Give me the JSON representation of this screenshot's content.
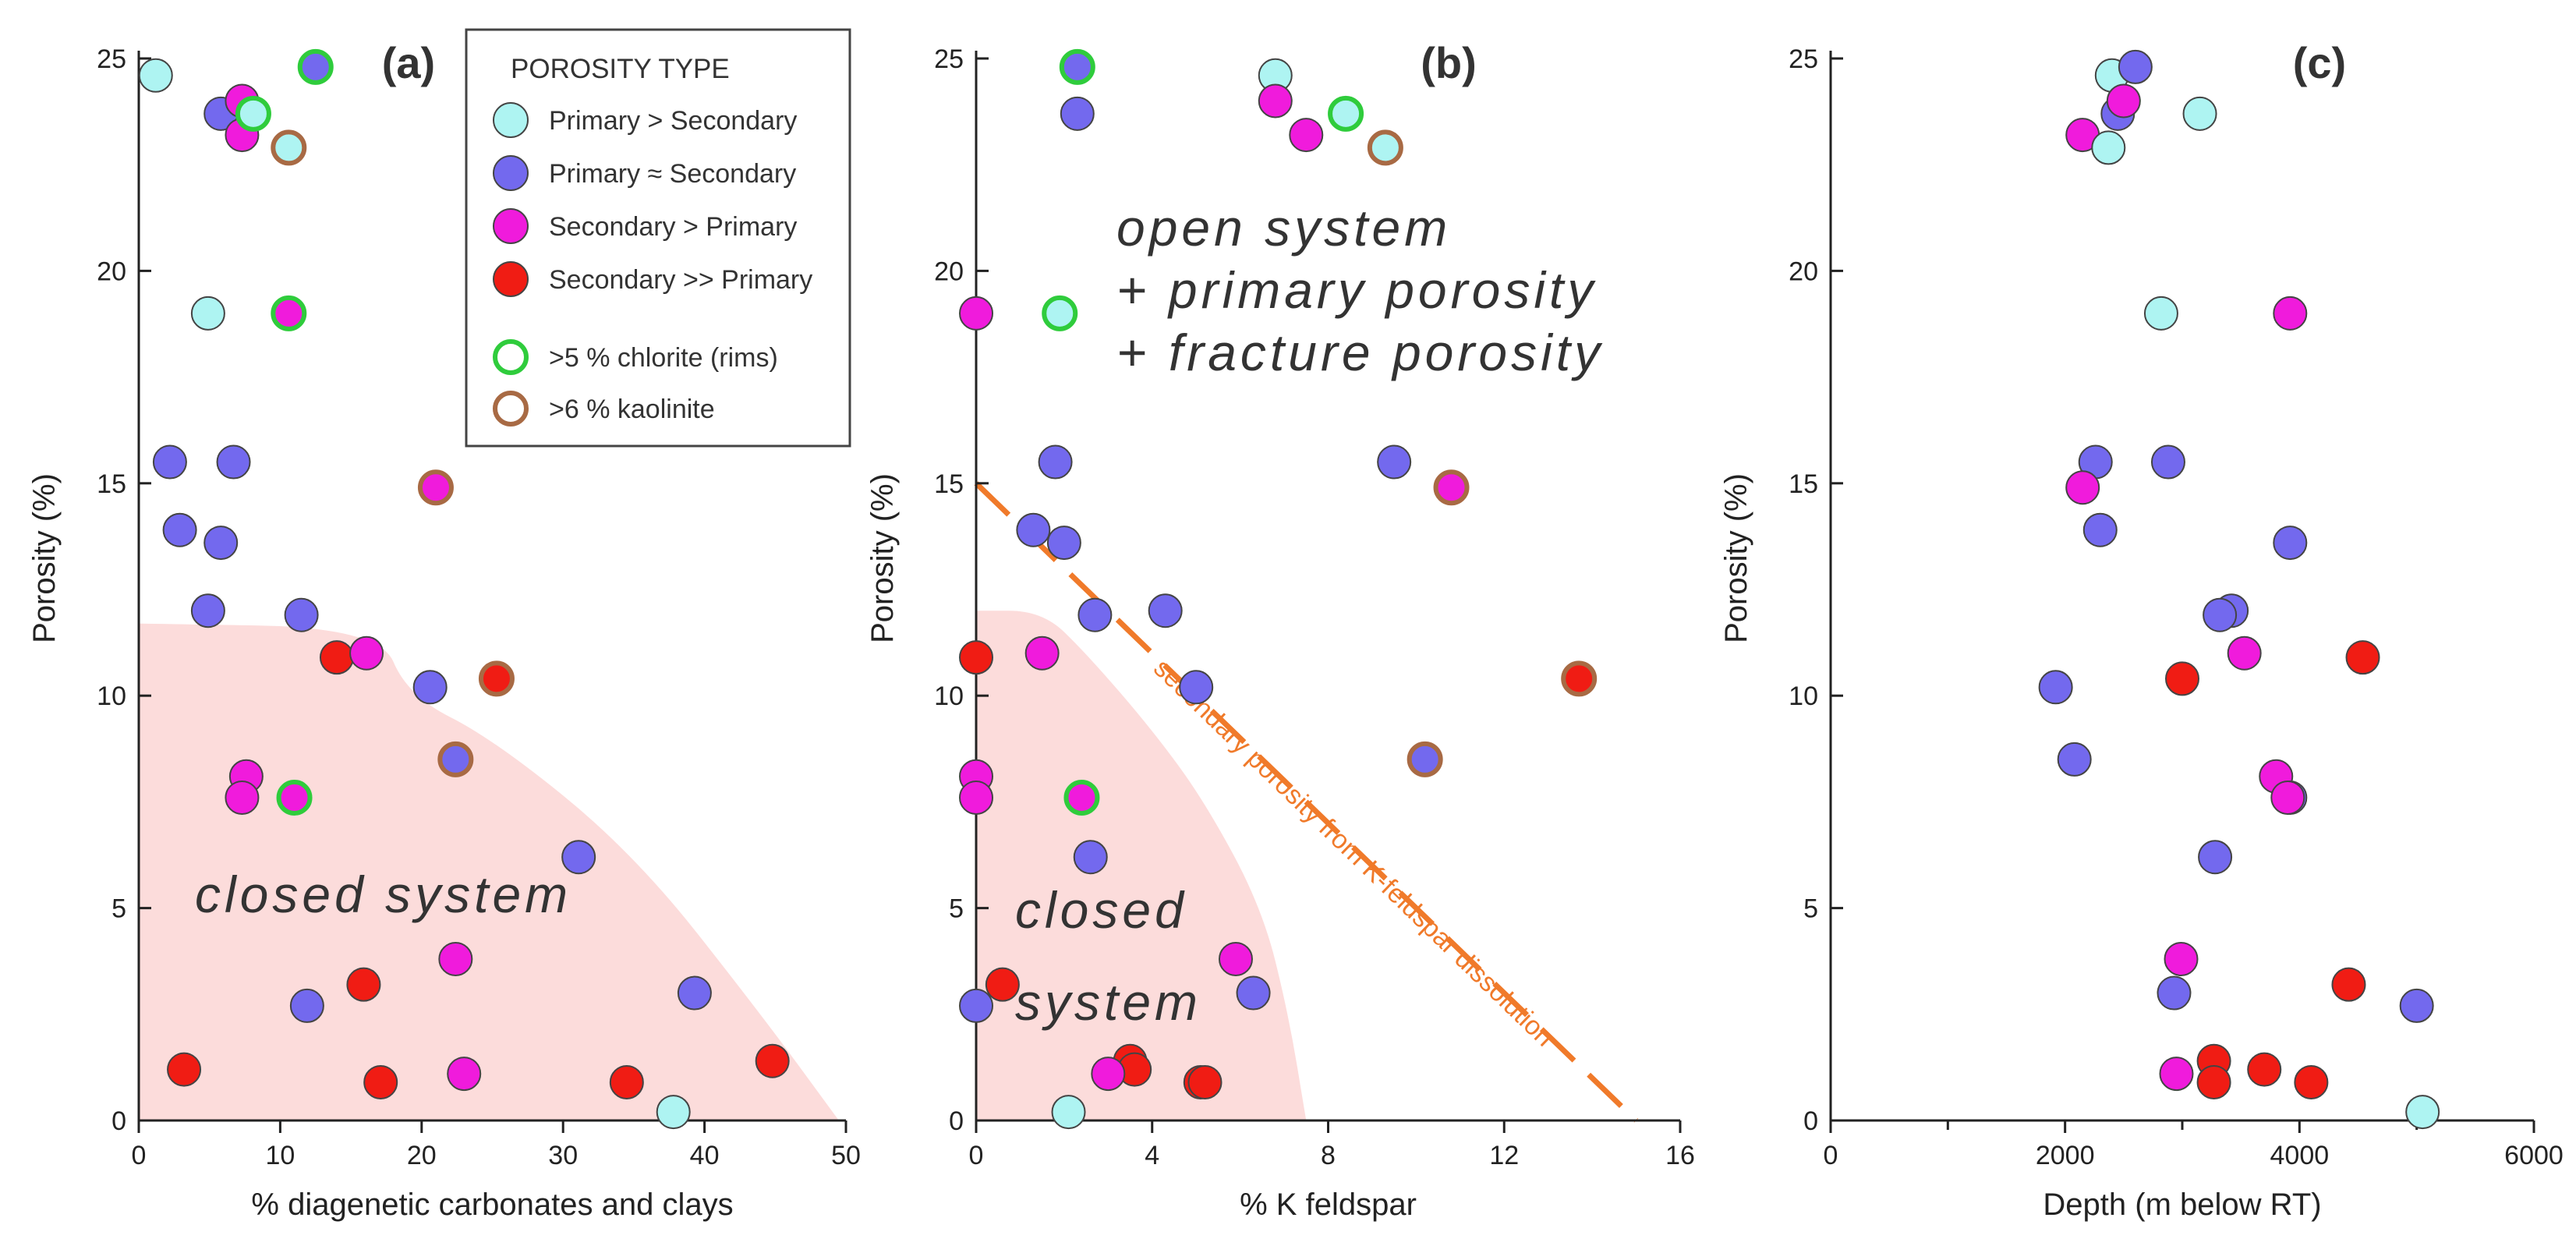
{
  "colors": {
    "primary_gt_secondary": "#aef4f2",
    "primary_eq_secondary": "#7369ee",
    "secondary_gt_primary": "#f01bdc",
    "secondary_gg_primary": "#f01c14",
    "chlorite_ring": "#2fcc3c",
    "kaolinite_ring": "#a86a44",
    "region_fill": "#fcdcdb",
    "dashed_line": "#f07a2a"
  },
  "legend": {
    "title": "POROSITY TYPE",
    "entries": [
      {
        "key": "P>S",
        "label": "Primary > Secondary"
      },
      {
        "key": "P=S",
        "label": "Primary ≈ Secondary"
      },
      {
        "key": "S>P",
        "label": "Secondary > Primary"
      },
      {
        "key": "S>>P",
        "label": "Secondary >> Primary"
      },
      {
        "key": "chl",
        "label": ">5 % chlorite (rims)"
      },
      {
        "key": "kao",
        "label": ">6 % kaolinite"
      }
    ]
  },
  "chart_data": [
    {
      "type": "scatter",
      "panel_label": "(a)",
      "xlabel": "% diagenetic carbonates and clays",
      "ylabel": "Porosity (%)",
      "xlim": [
        0,
        50
      ],
      "ylim": [
        0,
        25
      ],
      "xticks": [
        0,
        10,
        20,
        30,
        40,
        50
      ],
      "yticks": [
        0,
        5,
        10,
        15,
        20,
        25
      ],
      "region_label": "closed system",
      "region_boundary": [
        [
          0,
          11.7
        ],
        [
          17,
          11.6
        ],
        [
          19,
          10
        ],
        [
          25,
          9
        ],
        [
          35,
          6.3
        ],
        [
          44,
          2.5
        ],
        [
          49.5,
          0
        ]
      ],
      "points": [
        {
          "x": 1.2,
          "y": 24.6,
          "type": "P>S"
        },
        {
          "x": 12.5,
          "y": 24.8,
          "type": "P=S",
          "ring": "chl"
        },
        {
          "x": 5.8,
          "y": 23.7,
          "type": "P=S"
        },
        {
          "x": 7.3,
          "y": 24.0,
          "type": "S>P"
        },
        {
          "x": 7.3,
          "y": 23.2,
          "type": "S>P"
        },
        {
          "x": 8.1,
          "y": 23.7,
          "type": "P>S",
          "ring": "chl"
        },
        {
          "x": 10.6,
          "y": 22.9,
          "type": "P>S",
          "ring": "kao"
        },
        {
          "x": 4.9,
          "y": 19.0,
          "type": "P>S"
        },
        {
          "x": 10.6,
          "y": 19.0,
          "type": "S>P",
          "ring": "chl"
        },
        {
          "x": 2.2,
          "y": 15.5,
          "type": "P=S"
        },
        {
          "x": 6.7,
          "y": 15.5,
          "type": "P=S"
        },
        {
          "x": 21.0,
          "y": 14.9,
          "type": "S>P",
          "ring": "kao"
        },
        {
          "x": 2.9,
          "y": 13.9,
          "type": "P=S"
        },
        {
          "x": 5.8,
          "y": 13.6,
          "type": "P=S"
        },
        {
          "x": 4.9,
          "y": 12.0,
          "type": "P=S"
        },
        {
          "x": 11.5,
          "y": 11.9,
          "type": "P=S"
        },
        {
          "x": 14.0,
          "y": 10.9,
          "type": "S>>P"
        },
        {
          "x": 16.1,
          "y": 11.0,
          "type": "S>P"
        },
        {
          "x": 20.6,
          "y": 10.2,
          "type": "P=S"
        },
        {
          "x": 25.3,
          "y": 10.4,
          "type": "S>>P",
          "ring": "kao"
        },
        {
          "x": 22.4,
          "y": 8.5,
          "type": "P=S",
          "ring": "kao"
        },
        {
          "x": 7.6,
          "y": 8.1,
          "type": "S>P"
        },
        {
          "x": 7.3,
          "y": 7.6,
          "type": "S>P"
        },
        {
          "x": 11.0,
          "y": 7.6,
          "type": "S>P",
          "ring": "chl"
        },
        {
          "x": 31.1,
          "y": 6.2,
          "type": "P=S"
        },
        {
          "x": 22.4,
          "y": 3.8,
          "type": "S>P"
        },
        {
          "x": 15.9,
          "y": 3.2,
          "type": "S>>P"
        },
        {
          "x": 39.3,
          "y": 3.0,
          "type": "P=S"
        },
        {
          "x": 11.9,
          "y": 2.7,
          "type": "P=S"
        },
        {
          "x": 44.8,
          "y": 1.4,
          "type": "S>>P"
        },
        {
          "x": 3.2,
          "y": 1.2,
          "type": "S>>P"
        },
        {
          "x": 23.0,
          "y": 1.1,
          "type": "S>P"
        },
        {
          "x": 17.1,
          "y": 0.9,
          "type": "S>>P"
        },
        {
          "x": 34.5,
          "y": 0.9,
          "type": "S>>P"
        },
        {
          "x": 37.8,
          "y": 0.2,
          "type": "P>S"
        }
      ]
    },
    {
      "type": "scatter",
      "panel_label": "(b)",
      "xlabel": "% K feldspar",
      "ylabel": "Porosity (%)",
      "xlim": [
        0,
        16
      ],
      "ylim": [
        0,
        25
      ],
      "xticks": [
        0,
        4,
        8,
        12,
        16
      ],
      "yticks": [
        0,
        5,
        10,
        15,
        20,
        25
      ],
      "region_label_lines": [
        "closed",
        "system"
      ],
      "region_boundary": [
        [
          0,
          12.0
        ],
        [
          1.5,
          12.0
        ],
        [
          2.5,
          11.0
        ],
        [
          4,
          9.2
        ],
        [
          5.2,
          7.5
        ],
        [
          6.5,
          5.0
        ],
        [
          7.1,
          2.5
        ],
        [
          7.5,
          0
        ]
      ],
      "open_label_lines": [
        "open system",
        "+ primary porosity",
        "+ fracture porosity"
      ],
      "dashed_line": {
        "from": [
          0,
          15
        ],
        "to": [
          15,
          0
        ],
        "label": "secondary porosity from K-feldspar dissolution"
      },
      "points": [
        {
          "x": 2.3,
          "y": 24.8,
          "type": "P=S",
          "ring": "chl"
        },
        {
          "x": 2.3,
          "y": 23.7,
          "type": "P=S"
        },
        {
          "x": 6.8,
          "y": 24.6,
          "type": "P>S"
        },
        {
          "x": 6.8,
          "y": 24.0,
          "type": "S>P"
        },
        {
          "x": 7.5,
          "y": 23.2,
          "type": "S>P"
        },
        {
          "x": 8.4,
          "y": 23.7,
          "type": "P>S",
          "ring": "chl"
        },
        {
          "x": 9.3,
          "y": 22.9,
          "type": "P>S",
          "ring": "kao"
        },
        {
          "x": 0.0,
          "y": 19.0,
          "type": "S>P"
        },
        {
          "x": 1.9,
          "y": 19.0,
          "type": "P>S",
          "ring": "chl"
        },
        {
          "x": 1.8,
          "y": 15.5,
          "type": "P=S"
        },
        {
          "x": 9.5,
          "y": 15.5,
          "type": "P=S"
        },
        {
          "x": 10.8,
          "y": 14.9,
          "type": "S>P",
          "ring": "kao"
        },
        {
          "x": 1.3,
          "y": 13.9,
          "type": "P=S"
        },
        {
          "x": 2.0,
          "y": 13.6,
          "type": "P=S"
        },
        {
          "x": 4.3,
          "y": 12.0,
          "type": "P=S"
        },
        {
          "x": 2.7,
          "y": 11.9,
          "type": "P=S"
        },
        {
          "x": 1.5,
          "y": 11.0,
          "type": "S>P"
        },
        {
          "x": 0.0,
          "y": 10.9,
          "type": "S>>P"
        },
        {
          "x": 5.0,
          "y": 10.2,
          "type": "P=S"
        },
        {
          "x": 13.7,
          "y": 10.4,
          "type": "S>>P",
          "ring": "kao"
        },
        {
          "x": 10.2,
          "y": 8.5,
          "type": "P=S",
          "ring": "kao"
        },
        {
          "x": 0.0,
          "y": 8.1,
          "type": "S>P"
        },
        {
          "x": 0.0,
          "y": 7.6,
          "type": "S>P"
        },
        {
          "x": 2.4,
          "y": 7.6,
          "type": "S>P",
          "ring": "chl"
        },
        {
          "x": 2.6,
          "y": 6.2,
          "type": "P=S"
        },
        {
          "x": 5.9,
          "y": 3.8,
          "type": "S>P"
        },
        {
          "x": 0.6,
          "y": 3.2,
          "type": "S>>P"
        },
        {
          "x": 6.3,
          "y": 3.0,
          "type": "P=S"
        },
        {
          "x": 0.0,
          "y": 2.7,
          "type": "P=S"
        },
        {
          "x": 3.5,
          "y": 1.4,
          "type": "S>>P"
        },
        {
          "x": 3.6,
          "y": 1.2,
          "type": "S>>P"
        },
        {
          "x": 3.0,
          "y": 1.1,
          "type": "S>P"
        },
        {
          "x": 5.1,
          "y": 0.9,
          "type": "S>>P"
        },
        {
          "x": 5.2,
          "y": 0.9,
          "type": "S>>P"
        },
        {
          "x": 2.1,
          "y": 0.2,
          "type": "P>S"
        }
      ]
    },
    {
      "type": "scatter",
      "panel_label": "(c)",
      "xlabel": "Depth (m below RT)",
      "ylabel": "Porosity (%)",
      "xlim": [
        0,
        6000
      ],
      "ylim": [
        0,
        25
      ],
      "xticks": [
        0,
        2000,
        4000,
        6000
      ],
      "xminor": [
        1000,
        3000,
        5000
      ],
      "yticks": [
        0,
        5,
        10,
        15,
        20,
        25
      ],
      "points": [
        {
          "x": 2400,
          "y": 24.6,
          "type": "P>S"
        },
        {
          "x": 2600,
          "y": 24.8,
          "type": "P=S"
        },
        {
          "x": 2450,
          "y": 23.7,
          "type": "P=S"
        },
        {
          "x": 2500,
          "y": 24.0,
          "type": "S>P"
        },
        {
          "x": 2150,
          "y": 23.2,
          "type": "S>P"
        },
        {
          "x": 3150,
          "y": 23.7,
          "type": "P>S"
        },
        {
          "x": 2370,
          "y": 22.9,
          "type": "P>S"
        },
        {
          "x": 2820,
          "y": 19.0,
          "type": "P>S"
        },
        {
          "x": 3920,
          "y": 19.0,
          "type": "S>P"
        },
        {
          "x": 2260,
          "y": 15.5,
          "type": "P=S"
        },
        {
          "x": 2880,
          "y": 15.5,
          "type": "P=S"
        },
        {
          "x": 2150,
          "y": 14.9,
          "type": "S>P"
        },
        {
          "x": 2300,
          "y": 13.9,
          "type": "P=S"
        },
        {
          "x": 3920,
          "y": 13.6,
          "type": "P=S"
        },
        {
          "x": 3420,
          "y": 12.0,
          "type": "P=S"
        },
        {
          "x": 3320,
          "y": 11.9,
          "type": "P=S"
        },
        {
          "x": 3530,
          "y": 11.0,
          "type": "S>P"
        },
        {
          "x": 4540,
          "y": 10.9,
          "type": "S>>P"
        },
        {
          "x": 1920,
          "y": 10.2,
          "type": "P=S"
        },
        {
          "x": 3000,
          "y": 10.4,
          "type": "S>>P"
        },
        {
          "x": 2080,
          "y": 8.5,
          "type": "P=S"
        },
        {
          "x": 3800,
          "y": 8.1,
          "type": "S>P"
        },
        {
          "x": 3920,
          "y": 7.6,
          "type": "P=S"
        },
        {
          "x": 3900,
          "y": 7.6,
          "type": "S>P"
        },
        {
          "x": 3280,
          "y": 6.2,
          "type": "P=S"
        },
        {
          "x": 2990,
          "y": 3.8,
          "type": "S>P"
        },
        {
          "x": 4420,
          "y": 3.2,
          "type": "S>>P"
        },
        {
          "x": 2930,
          "y": 3.0,
          "type": "P=S"
        },
        {
          "x": 5000,
          "y": 2.7,
          "type": "P=S"
        },
        {
          "x": 3270,
          "y": 1.4,
          "type": "S>>P"
        },
        {
          "x": 3700,
          "y": 1.2,
          "type": "S>>P"
        },
        {
          "x": 2950,
          "y": 1.1,
          "type": "S>P"
        },
        {
          "x": 3270,
          "y": 0.9,
          "type": "S>>P"
        },
        {
          "x": 4100,
          "y": 0.9,
          "type": "S>>P"
        },
        {
          "x": 5050,
          "y": 0.2,
          "type": "P>S"
        }
      ]
    }
  ]
}
